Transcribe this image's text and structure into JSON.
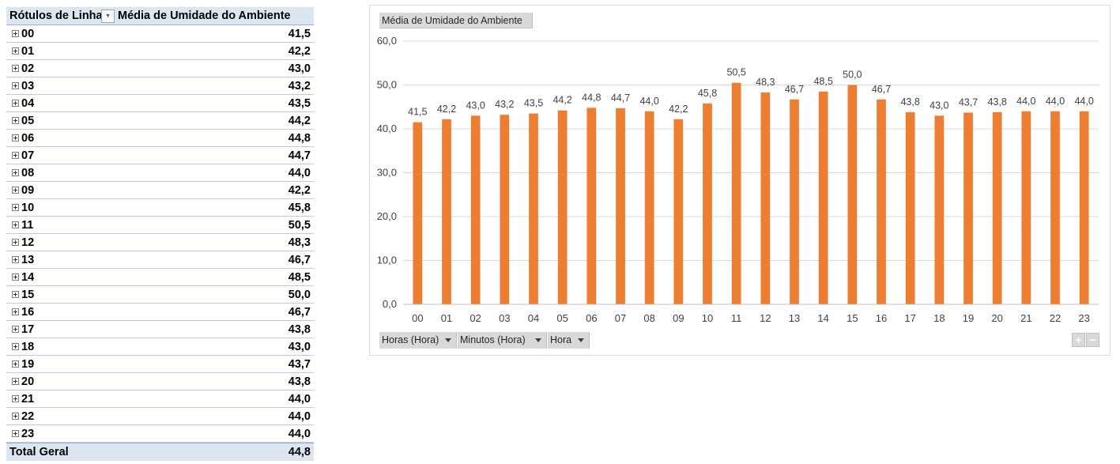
{
  "pivot": {
    "header_rows_label": "Rótulos de Linha",
    "header_values_label": "Média de Umidade do Ambiente",
    "rows": [
      {
        "label": "00",
        "value": "41,5"
      },
      {
        "label": "01",
        "value": "42,2"
      },
      {
        "label": "02",
        "value": "43,0"
      },
      {
        "label": "03",
        "value": "43,2"
      },
      {
        "label": "04",
        "value": "43,5"
      },
      {
        "label": "05",
        "value": "44,2"
      },
      {
        "label": "06",
        "value": "44,8"
      },
      {
        "label": "07",
        "value": "44,7"
      },
      {
        "label": "08",
        "value": "44,0"
      },
      {
        "label": "09",
        "value": "42,2"
      },
      {
        "label": "10",
        "value": "45,8"
      },
      {
        "label": "11",
        "value": "50,5"
      },
      {
        "label": "12",
        "value": "48,3"
      },
      {
        "label": "13",
        "value": "46,7"
      },
      {
        "label": "14",
        "value": "48,5"
      },
      {
        "label": "15",
        "value": "50,0"
      },
      {
        "label": "16",
        "value": "46,7"
      },
      {
        "label": "17",
        "value": "43,8"
      },
      {
        "label": "18",
        "value": "43,0"
      },
      {
        "label": "19",
        "value": "43,7"
      },
      {
        "label": "20",
        "value": "43,8"
      },
      {
        "label": "21",
        "value": "44,0"
      },
      {
        "label": "22",
        "value": "44,0"
      },
      {
        "label": "23",
        "value": "44,0"
      }
    ],
    "total_label": "Total Geral",
    "total_value": "44,8"
  },
  "chart_ui": {
    "title_button": "Média de Umidade do Ambiente",
    "field_buttons": [
      "Horas (Hora)",
      "Minutos (Hora)",
      "Hora"
    ],
    "zoom_in": "+",
    "zoom_out": "−"
  },
  "chart_data": {
    "type": "bar",
    "categories": [
      "00",
      "01",
      "02",
      "03",
      "04",
      "05",
      "06",
      "07",
      "08",
      "09",
      "10",
      "11",
      "12",
      "13",
      "14",
      "15",
      "16",
      "17",
      "18",
      "19",
      "20",
      "21",
      "22",
      "23"
    ],
    "values": [
      41.5,
      42.2,
      43.0,
      43.2,
      43.5,
      44.2,
      44.8,
      44.7,
      44.0,
      42.2,
      45.8,
      50.5,
      48.3,
      46.7,
      48.5,
      50.0,
      46.7,
      43.8,
      43.0,
      43.7,
      43.8,
      44.0,
      44.0,
      44.0
    ],
    "data_labels": [
      "41,5",
      "42,2",
      "43,0",
      "43,2",
      "43,5",
      "44,2",
      "44,8",
      "44,7",
      "44,0",
      "42,2",
      "45,8",
      "50,5",
      "48,3",
      "46,7",
      "48,5",
      "50,0",
      "46,7",
      "43,8",
      "43,0",
      "43,7",
      "43,8",
      "44,0",
      "44,0",
      "44,0"
    ],
    "ylim": [
      0,
      60
    ],
    "yticks": [
      0,
      10,
      20,
      30,
      40,
      50,
      60
    ],
    "ytick_labels": [
      "0,0",
      "10,0",
      "20,0",
      "30,0",
      "40,0",
      "50,0",
      "60,0"
    ],
    "grid": true,
    "legend": false,
    "bar_color": "#ed7d31",
    "grid_color": "#d9d9d9"
  }
}
